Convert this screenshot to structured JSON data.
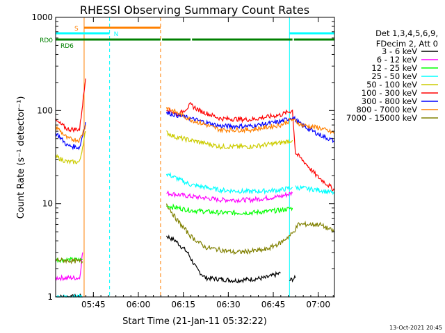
{
  "chart_data": {
    "type": "line",
    "title": "RHESSI Observing Summary Count Rates",
    "xlabel": "Start Time (21-Jan-11 05:32:22)",
    "ylabel": "Count Rate (s⁻¹ detector⁻¹)",
    "yscale": "log",
    "ylim": [
      1,
      1000
    ],
    "xlim_minutes": [
      0,
      93
    ],
    "x_ticks": [
      {
        "label": "05:45",
        "minute": 12.6
      },
      {
        "label": "06:00",
        "minute": 27.6
      },
      {
        "label": "06:15",
        "minute": 42.6
      },
      {
        "label": "06:30",
        "minute": 57.6
      },
      {
        "label": "06:45",
        "minute": 72.6
      },
      {
        "label": "07:00",
        "minute": 87.6
      }
    ],
    "y_ticks": [
      {
        "label": "1",
        "value": 1
      },
      {
        "label": "10",
        "value": 10
      },
      {
        "label": "100",
        "value": 100
      },
      {
        "label": "1000",
        "value": 1000
      }
    ],
    "legend_header": [
      "Det 1,3,4,5,6,9,",
      "FDecim 2, Att 0"
    ],
    "legend_placement": "right",
    "series": [
      {
        "name": "3 - 6 keV",
        "color": "#000000",
        "segments": [
          [
            {
              "x": 0,
              "y": 1
            },
            {
              "x": 9,
              "y": 1
            }
          ],
          [
            {
              "x": 37,
              "y": 4.5
            },
            {
              "x": 40,
              "y": 4
            },
            {
              "x": 44,
              "y": 3
            },
            {
              "x": 47,
              "y": 2
            },
            {
              "x": 50,
              "y": 1.6
            },
            {
              "x": 60,
              "y": 1.5
            },
            {
              "x": 70,
              "y": 1.6
            },
            {
              "x": 75,
              "y": 1.8
            }
          ],
          [
            {
              "x": 78,
              "y": 1.5
            },
            {
              "x": 80,
              "y": 1.6
            }
          ]
        ]
      },
      {
        "name": "6 - 12 keV",
        "color": "#ff00ff",
        "segments": [
          [
            {
              "x": 0,
              "y": 1.6
            },
            {
              "x": 8,
              "y": 1.6
            },
            {
              "x": 9,
              "y": 3
            }
          ],
          [
            {
              "x": 37,
              "y": 13
            },
            {
              "x": 45,
              "y": 12
            },
            {
              "x": 55,
              "y": 11
            },
            {
              "x": 65,
              "y": 11
            },
            {
              "x": 75,
              "y": 12
            },
            {
              "x": 79,
              "y": 13
            }
          ]
        ]
      },
      {
        "name": "12 - 25 keV",
        "color": "#00ff00",
        "segments": [
          [
            {
              "x": 0,
              "y": 2.5
            },
            {
              "x": 9,
              "y": 2.5
            }
          ],
          [
            {
              "x": 37,
              "y": 9.5
            },
            {
              "x": 45,
              "y": 8.5
            },
            {
              "x": 55,
              "y": 8
            },
            {
              "x": 65,
              "y": 8
            },
            {
              "x": 75,
              "y": 8.5
            },
            {
              "x": 79,
              "y": 9
            }
          ]
        ]
      },
      {
        "name": "25 - 50 keV",
        "color": "#00ffff",
        "segments": [
          [
            {
              "x": 0,
              "y": 1
            },
            {
              "x": 9,
              "y": 1
            }
          ],
          [
            {
              "x": 37,
              "y": 21
            },
            {
              "x": 45,
              "y": 16
            },
            {
              "x": 55,
              "y": 14
            },
            {
              "x": 65,
              "y": 13.5
            },
            {
              "x": 75,
              "y": 14
            },
            {
              "x": 79,
              "y": 15
            }
          ],
          [
            {
              "x": 80,
              "y": 15
            },
            {
              "x": 88,
              "y": 14
            },
            {
              "x": 93,
              "y": 13
            }
          ]
        ]
      },
      {
        "name": "50 - 100 keV",
        "color": "#cccc00",
        "segments": [
          [
            {
              "x": 0,
              "y": 32
            },
            {
              "x": 4,
              "y": 28
            },
            {
              "x": 8,
              "y": 28
            },
            {
              "x": 10,
              "y": 60
            }
          ],
          [
            {
              "x": 37,
              "y": 58
            },
            {
              "x": 40,
              "y": 52
            },
            {
              "x": 45,
              "y": 48
            },
            {
              "x": 55,
              "y": 41
            },
            {
              "x": 65,
              "y": 41
            },
            {
              "x": 75,
              "y": 45
            },
            {
              "x": 79,
              "y": 48
            }
          ]
        ]
      },
      {
        "name": "100 - 300 keV",
        "color": "#ff0000",
        "segments": [
          [
            {
              "x": 0,
              "y": 78
            },
            {
              "x": 4,
              "y": 63
            },
            {
              "x": 8,
              "y": 63
            },
            {
              "x": 10,
              "y": 220
            }
          ],
          [
            {
              "x": 37,
              "y": 105
            },
            {
              "x": 41,
              "y": 90
            },
            {
              "x": 45,
              "y": 115
            },
            {
              "x": 48,
              "y": 100
            },
            {
              "x": 55,
              "y": 82
            },
            {
              "x": 65,
              "y": 80
            },
            {
              "x": 75,
              "y": 90
            },
            {
              "x": 79,
              "y": 100
            },
            {
              "x": 80,
              "y": 35
            },
            {
              "x": 83,
              "y": 28
            },
            {
              "x": 87,
              "y": 20
            },
            {
              "x": 93,
              "y": 14
            }
          ]
        ]
      },
      {
        "name": "300 - 800 keV",
        "color": "#0000ff",
        "segments": [
          [
            {
              "x": 0,
              "y": 58
            },
            {
              "x": 4,
              "y": 42
            },
            {
              "x": 8,
              "y": 40
            },
            {
              "x": 10,
              "y": 75
            }
          ],
          [
            {
              "x": 37,
              "y": 95
            },
            {
              "x": 45,
              "y": 82
            },
            {
              "x": 55,
              "y": 68
            },
            {
              "x": 65,
              "y": 68
            },
            {
              "x": 75,
              "y": 76
            },
            {
              "x": 79,
              "y": 85
            },
            {
              "x": 82,
              "y": 70
            },
            {
              "x": 88,
              "y": 55
            },
            {
              "x": 93,
              "y": 47
            }
          ]
        ]
      },
      {
        "name": "800 - 7000 keV",
        "color": "#ff8000",
        "segments": [
          [
            {
              "x": 0,
              "y": 68
            },
            {
              "x": 4,
              "y": 50
            },
            {
              "x": 8,
              "y": 48
            },
            {
              "x": 10,
              "y": 70
            }
          ],
          [
            {
              "x": 37,
              "y": 108
            },
            {
              "x": 45,
              "y": 80
            },
            {
              "x": 55,
              "y": 62
            },
            {
              "x": 65,
              "y": 62
            },
            {
              "x": 75,
              "y": 70
            },
            {
              "x": 79,
              "y": 80
            },
            {
              "x": 82,
              "y": 70
            },
            {
              "x": 88,
              "y": 65
            },
            {
              "x": 93,
              "y": 57
            }
          ]
        ]
      },
      {
        "name": "7000 - 15000 keV",
        "color": "#808000",
        "segments": [
          [
            {
              "x": 0,
              "y": 2.5
            },
            {
              "x": 9,
              "y": 2.4
            }
          ],
          [
            {
              "x": 37,
              "y": 10
            },
            {
              "x": 40,
              "y": 7
            },
            {
              "x": 45,
              "y": 4.5
            },
            {
              "x": 50,
              "y": 3.4
            },
            {
              "x": 60,
              "y": 3
            },
            {
              "x": 70,
              "y": 3.2
            },
            {
              "x": 75,
              "y": 3.8
            },
            {
              "x": 79,
              "y": 4.8
            },
            {
              "x": 81,
              "y": 6
            },
            {
              "x": 88,
              "y": 6
            },
            {
              "x": 93,
              "y": 5
            }
          ]
        ]
      }
    ],
    "flags": [
      {
        "label": "S",
        "color": "#ff8000",
        "segments": [
          [
            9.5,
            35
          ]
        ]
      },
      {
        "label": "N",
        "color": "#00ffff",
        "segments": [
          [
            0,
            18
          ],
          [
            78,
            93
          ]
        ]
      },
      {
        "label": "RD0",
        "color": "#008000",
        "segments": [
          [
            0,
            35
          ],
          [
            35.5,
            45
          ],
          [
            45.5,
            79
          ],
          [
            79.5,
            93
          ]
        ]
      },
      {
        "label": "RD6",
        "color": "#008000",
        "segments": []
      }
    ],
    "vlines": [
      {
        "minute": 0,
        "color": "#00ffff",
        "dash": "solid"
      },
      {
        "minute": 9.5,
        "color": "#ff8000",
        "dash": "solid"
      },
      {
        "minute": 18,
        "color": "#00ffff",
        "dash": "dashed"
      },
      {
        "minute": 35,
        "color": "#ff8000",
        "dash": "dashed"
      },
      {
        "minute": 78,
        "color": "#00ffff",
        "dash": "solid"
      },
      {
        "minute": 93,
        "color": "#00ffff",
        "dash": "dashed"
      }
    ],
    "footer": "13-Oct-2021 20:45"
  }
}
